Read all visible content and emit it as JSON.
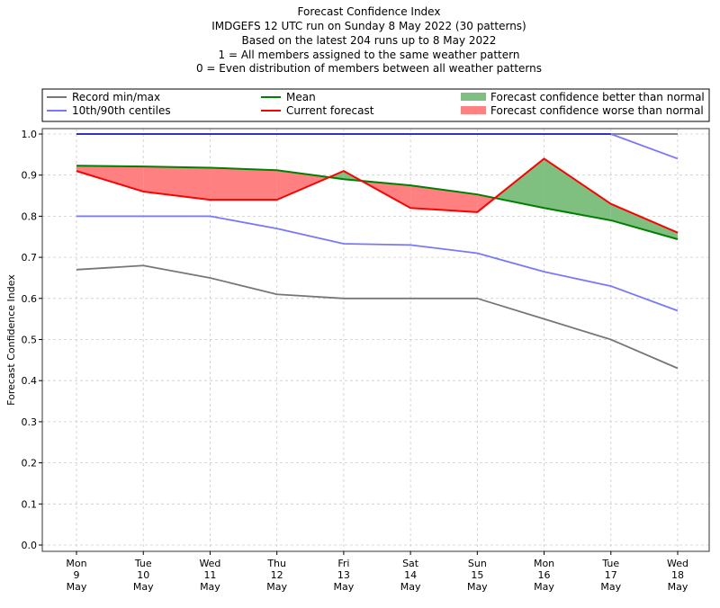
{
  "chart_data": {
    "type": "line",
    "title_lines": [
      "Forecast Confidence Index",
      "IMDGEFS 12 UTC run on Sunday 8 May 2022 (30 patterns)",
      "Based on the latest 204 runs up to 8 May 2022",
      "1 = All members assigned to the same weather pattern",
      "0 = Even distribution of members between all weather patterns"
    ],
    "xlabel": "",
    "ylabel": "Forecast Confidence Index",
    "ylim": [
      0.0,
      1.0
    ],
    "yticks": [
      "0.0",
      "0.1",
      "0.2",
      "0.3",
      "0.4",
      "0.5",
      "0.6",
      "0.7",
      "0.8",
      "0.9",
      "1.0"
    ],
    "grid": true,
    "legend_position": "top (above plot, 3 columns)",
    "categories": [
      {
        "day": "Mon",
        "date": "9",
        "month": "May"
      },
      {
        "day": "Tue",
        "date": "10",
        "month": "May"
      },
      {
        "day": "Wed",
        "date": "11",
        "month": "May"
      },
      {
        "day": "Thu",
        "date": "12",
        "month": "May"
      },
      {
        "day": "Fri",
        "date": "13",
        "month": "May"
      },
      {
        "day": "Sat",
        "date": "14",
        "month": "May"
      },
      {
        "day": "Sun",
        "date": "15",
        "month": "May"
      },
      {
        "day": "Mon",
        "date": "16",
        "month": "May"
      },
      {
        "day": "Tue",
        "date": "17",
        "month": "May"
      },
      {
        "day": "Wed",
        "date": "18",
        "month": "May"
      }
    ],
    "series": [
      {
        "key": "record_max",
        "name": "Record min/max",
        "color": "#777777",
        "values": [
          1.0,
          1.0,
          1.0,
          1.0,
          1.0,
          1.0,
          1.0,
          1.0,
          1.0,
          1.0
        ]
      },
      {
        "key": "record_min",
        "name": "Record min/max",
        "color": "#777777",
        "values": [
          0.67,
          0.68,
          0.65,
          0.61,
          0.6,
          0.6,
          0.6,
          0.55,
          0.5,
          0.43
        ]
      },
      {
        "key": "p90",
        "name": "10th/90th centiles",
        "color": "#7777ff",
        "values": [
          1.0,
          1.0,
          1.0,
          1.0,
          1.0,
          1.0,
          1.0,
          1.0,
          1.0,
          0.94
        ]
      },
      {
        "key": "p10",
        "name": "10th/90th centiles",
        "color": "#7777ff",
        "values": [
          0.8,
          0.8,
          0.8,
          0.77,
          0.733,
          0.73,
          0.71,
          0.665,
          0.63,
          0.57
        ]
      },
      {
        "key": "mean",
        "name": "Mean",
        "color": "#008000",
        "values": [
          0.923,
          0.921,
          0.918,
          0.912,
          0.89,
          0.875,
          0.853,
          0.82,
          0.79,
          0.744
        ]
      },
      {
        "key": "current",
        "name": "Current forecast",
        "color": "#ff0000",
        "values": [
          0.91,
          0.86,
          0.84,
          0.84,
          0.91,
          0.82,
          0.81,
          0.94,
          0.83,
          0.76
        ]
      }
    ],
    "fills": {
      "better": {
        "name": "Forecast confidence better than normal",
        "color": "#7fbf7f"
      },
      "worse": {
        "name": "Forecast confidence worse than normal",
        "color": "#ff8080"
      }
    },
    "legend": [
      {
        "label": "Record min/max",
        "kind": "line",
        "color": "#777777"
      },
      {
        "label": "10th/90th centiles",
        "kind": "line",
        "color": "#7777ff"
      },
      {
        "label": "Mean",
        "kind": "line",
        "color": "#008000"
      },
      {
        "label": "Current forecast",
        "kind": "line",
        "color": "#ff0000"
      },
      {
        "label": "Forecast confidence better than normal",
        "kind": "patch",
        "color": "#7fbf7f"
      },
      {
        "label": "Forecast confidence worse than normal",
        "kind": "patch",
        "color": "#ff8080"
      }
    ]
  }
}
